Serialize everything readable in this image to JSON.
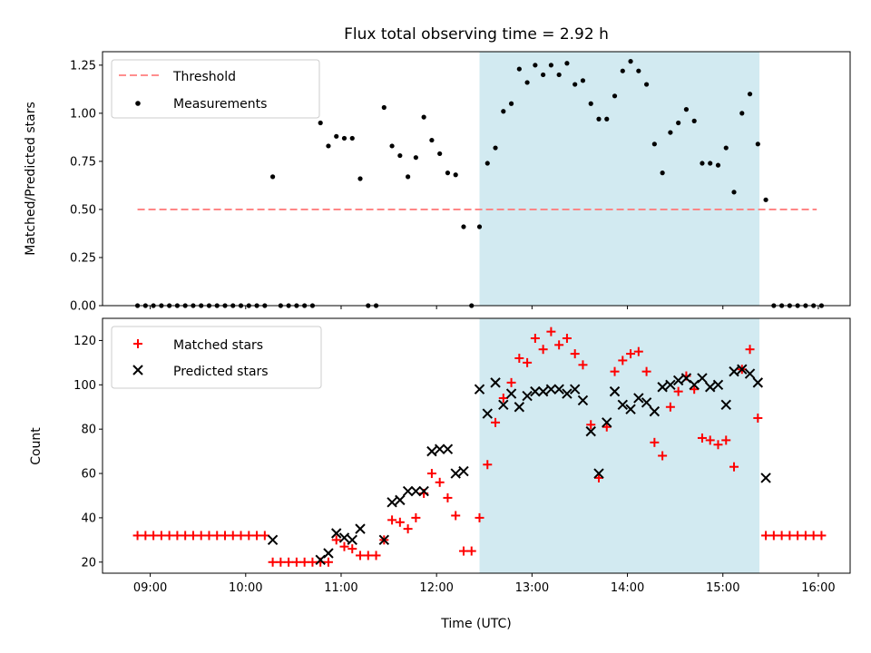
{
  "chart_data": [
    {
      "type": "scatter",
      "title": "Flux total observing time = 2.92 h",
      "xlabel": "",
      "ylabel": "Matched/Predicted stars",
      "ylim": [
        0,
        1.32
      ],
      "yticks": [
        "0.00",
        "0.25",
        "0.50",
        "0.75",
        "1.00",
        "1.25"
      ],
      "xlim": [
        "08:30",
        "16:20"
      ],
      "shaded_region": {
        "start": "12:27",
        "end": "15:23",
        "color": "#add8e6"
      },
      "legend_position": "upper left",
      "threshold": {
        "name": "Threshold",
        "value": 0.5,
        "start": "08:52",
        "end": "15:59",
        "color": "#ff7f7f"
      },
      "series": [
        {
          "name": "Measurements",
          "marker": "dot",
          "color": "#000000",
          "points": [
            [
              "08:52",
              0
            ],
            [
              "08:57",
              0
            ],
            [
              "09:02",
              0
            ],
            [
              "09:07",
              0
            ],
            [
              "09:12",
              0
            ],
            [
              "09:17",
              0
            ],
            [
              "09:22",
              0
            ],
            [
              "09:27",
              0
            ],
            [
              "09:32",
              0
            ],
            [
              "09:37",
              0
            ],
            [
              "09:42",
              0
            ],
            [
              "09:47",
              0
            ],
            [
              "09:52",
              0
            ],
            [
              "09:57",
              0
            ],
            [
              "10:02",
              0
            ],
            [
              "10:07",
              0
            ],
            [
              "10:12",
              0
            ],
            [
              "10:17",
              0.67
            ],
            [
              "10:22",
              0
            ],
            [
              "10:27",
              0
            ],
            [
              "10:32",
              0
            ],
            [
              "10:37",
              0
            ],
            [
              "10:42",
              0
            ],
            [
              "10:47",
              0.95
            ],
            [
              "10:52",
              0.83
            ],
            [
              "10:57",
              0.88
            ],
            [
              "11:02",
              0.87
            ],
            [
              "11:07",
              0.87
            ],
            [
              "11:12",
              0.66
            ],
            [
              "11:17",
              0
            ],
            [
              "11:22",
              0
            ],
            [
              "11:27",
              1.03
            ],
            [
              "11:32",
              0.83
            ],
            [
              "11:37",
              0.78
            ],
            [
              "11:42",
              0.67
            ],
            [
              "11:47",
              0.77
            ],
            [
              "11:52",
              0.98
            ],
            [
              "11:57",
              0.86
            ],
            [
              "12:02",
              0.79
            ],
            [
              "12:07",
              0.69
            ],
            [
              "12:12",
              0.68
            ],
            [
              "12:17",
              0.41
            ],
            [
              "12:22",
              0
            ],
            [
              "12:27",
              0.41
            ],
            [
              "12:32",
              0.74
            ],
            [
              "12:37",
              0.82
            ],
            [
              "12:42",
              1.01
            ],
            [
              "12:47",
              1.05
            ],
            [
              "12:52",
              1.23
            ],
            [
              "12:57",
              1.16
            ],
            [
              "13:02",
              1.25
            ],
            [
              "13:07",
              1.2
            ],
            [
              "13:12",
              1.25
            ],
            [
              "13:17",
              1.2
            ],
            [
              "13:22",
              1.26
            ],
            [
              "13:27",
              1.15
            ],
            [
              "13:32",
              1.17
            ],
            [
              "13:37",
              1.05
            ],
            [
              "13:42",
              0.97
            ],
            [
              "13:47",
              0.97
            ],
            [
              "13:52",
              1.09
            ],
            [
              "13:57",
              1.22
            ],
            [
              "14:02",
              1.27
            ],
            [
              "14:07",
              1.22
            ],
            [
              "14:12",
              1.15
            ],
            [
              "14:17",
              0.84
            ],
            [
              "14:22",
              0.69
            ],
            [
              "14:27",
              0.9
            ],
            [
              "14:32",
              0.95
            ],
            [
              "14:37",
              1.02
            ],
            [
              "14:42",
              0.96
            ],
            [
              "14:47",
              0.74
            ],
            [
              "14:52",
              0.74
            ],
            [
              "14:57",
              0.73
            ],
            [
              "15:02",
              0.82
            ],
            [
              "15:07",
              0.59
            ],
            [
              "15:12",
              1.0
            ],
            [
              "15:17",
              1.1
            ],
            [
              "15:22",
              0.84
            ],
            [
              "15:27",
              0.55
            ],
            [
              "15:32",
              0
            ],
            [
              "15:37",
              0
            ],
            [
              "15:42",
              0
            ],
            [
              "15:47",
              0
            ],
            [
              "15:52",
              0
            ],
            [
              "15:57",
              0
            ],
            [
              "16:02",
              0
            ]
          ]
        }
      ]
    },
    {
      "type": "scatter",
      "title": "",
      "xlabel": "Time (UTC)",
      "ylabel": "Count",
      "ylim": [
        15,
        130
      ],
      "yticks": [
        "20",
        "40",
        "60",
        "80",
        "100",
        "120"
      ],
      "xlim": [
        "08:30",
        "16:20"
      ],
      "xticks": [
        "09:00",
        "10:00",
        "11:00",
        "12:00",
        "13:00",
        "14:00",
        "15:00",
        "16:00"
      ],
      "shaded_region": {
        "start": "12:27",
        "end": "15:23",
        "color": "#add8e6"
      },
      "legend_position": "upper left",
      "series": [
        {
          "name": "Matched stars",
          "marker": "plus",
          "color": "#ff0000",
          "points": [
            [
              "08:52",
              32
            ],
            [
              "08:57",
              32
            ],
            [
              "09:02",
              32
            ],
            [
              "09:07",
              32
            ],
            [
              "09:12",
              32
            ],
            [
              "09:17",
              32
            ],
            [
              "09:22",
              32
            ],
            [
              "09:27",
              32
            ],
            [
              "09:32",
              32
            ],
            [
              "09:37",
              32
            ],
            [
              "09:42",
              32
            ],
            [
              "09:47",
              32
            ],
            [
              "09:52",
              32
            ],
            [
              "09:57",
              32
            ],
            [
              "10:02",
              32
            ],
            [
              "10:07",
              32
            ],
            [
              "10:12",
              32
            ],
            [
              "10:17",
              20
            ],
            [
              "10:22",
              20
            ],
            [
              "10:27",
              20
            ],
            [
              "10:32",
              20
            ],
            [
              "10:37",
              20
            ],
            [
              "10:42",
              20
            ],
            [
              "10:47",
              20
            ],
            [
              "10:52",
              20
            ],
            [
              "10:57",
              30
            ],
            [
              "11:02",
              27
            ],
            [
              "11:07",
              26
            ],
            [
              "11:12",
              23
            ],
            [
              "11:17",
              23
            ],
            [
              "11:22",
              23
            ],
            [
              "11:27",
              30
            ],
            [
              "11:32",
              39
            ],
            [
              "11:37",
              38
            ],
            [
              "11:42",
              35
            ],
            [
              "11:47",
              40
            ],
            [
              "11:52",
              51
            ],
            [
              "11:57",
              60
            ],
            [
              "12:02",
              56
            ],
            [
              "12:07",
              49
            ],
            [
              "12:12",
              41
            ],
            [
              "12:17",
              25
            ],
            [
              "12:22",
              25
            ],
            [
              "12:27",
              40
            ],
            [
              "12:32",
              64
            ],
            [
              "12:37",
              83
            ],
            [
              "12:42",
              94
            ],
            [
              "12:47",
              101
            ],
            [
              "12:52",
              112
            ],
            [
              "12:57",
              110
            ],
            [
              "13:02",
              121
            ],
            [
              "13:07",
              116
            ],
            [
              "13:12",
              124
            ],
            [
              "13:17",
              118
            ],
            [
              "13:22",
              121
            ],
            [
              "13:27",
              114
            ],
            [
              "13:32",
              109
            ],
            [
              "13:37",
              82
            ],
            [
              "13:42",
              58
            ],
            [
              "13:47",
              81
            ],
            [
              "13:52",
              106
            ],
            [
              "13:57",
              111
            ],
            [
              "14:02",
              114
            ],
            [
              "14:07",
              115
            ],
            [
              "14:12",
              106
            ],
            [
              "14:17",
              74
            ],
            [
              "14:22",
              68
            ],
            [
              "14:27",
              90
            ],
            [
              "14:32",
              97
            ],
            [
              "14:37",
              104
            ],
            [
              "14:42",
              98
            ],
            [
              "14:47",
              76
            ],
            [
              "14:52",
              75
            ],
            [
              "14:57",
              73
            ],
            [
              "15:02",
              75
            ],
            [
              "15:07",
              63
            ],
            [
              "15:12",
              107
            ],
            [
              "15:17",
              116
            ],
            [
              "15:22",
              85
            ],
            [
              "15:27",
              32
            ],
            [
              "15:32",
              32
            ],
            [
              "15:37",
              32
            ],
            [
              "15:42",
              32
            ],
            [
              "15:47",
              32
            ],
            [
              "15:52",
              32
            ],
            [
              "15:57",
              32
            ],
            [
              "16:02",
              32
            ]
          ]
        },
        {
          "name": "Predicted stars",
          "marker": "x",
          "color": "#000000",
          "points": [
            [
              "10:17",
              30
            ],
            [
              "10:47",
              21
            ],
            [
              "10:52",
              24
            ],
            [
              "10:57",
              33
            ],
            [
              "11:02",
              31
            ],
            [
              "11:07",
              30
            ],
            [
              "11:12",
              35
            ],
            [
              "11:27",
              30
            ],
            [
              "11:32",
              47
            ],
            [
              "11:37",
              48
            ],
            [
              "11:42",
              52
            ],
            [
              "11:47",
              52
            ],
            [
              "11:52",
              52
            ],
            [
              "11:57",
              70
            ],
            [
              "12:02",
              71
            ],
            [
              "12:07",
              71
            ],
            [
              "12:12",
              60
            ],
            [
              "12:17",
              61
            ],
            [
              "12:27",
              98
            ],
            [
              "12:32",
              87
            ],
            [
              "12:37",
              101
            ],
            [
              "12:42",
              91
            ],
            [
              "12:47",
              96
            ],
            [
              "12:52",
              90
            ],
            [
              "12:57",
              95
            ],
            [
              "13:02",
              97
            ],
            [
              "13:07",
              97
            ],
            [
              "13:12",
              98
            ],
            [
              "13:17",
              98
            ],
            [
              "13:22",
              96
            ],
            [
              "13:27",
              98
            ],
            [
              "13:32",
              93
            ],
            [
              "13:37",
              79
            ],
            [
              "13:42",
              60
            ],
            [
              "13:47",
              83
            ],
            [
              "13:52",
              97
            ],
            [
              "13:57",
              91
            ],
            [
              "14:02",
              89
            ],
            [
              "14:07",
              94
            ],
            [
              "14:12",
              92
            ],
            [
              "14:17",
              88
            ],
            [
              "14:22",
              99
            ],
            [
              "14:27",
              100
            ],
            [
              "14:32",
              102
            ],
            [
              "14:37",
              103
            ],
            [
              "14:42",
              100
            ],
            [
              "14:47",
              103
            ],
            [
              "14:52",
              99
            ],
            [
              "14:57",
              100
            ],
            [
              "15:02",
              91
            ],
            [
              "15:07",
              106
            ],
            [
              "15:12",
              107
            ],
            [
              "15:17",
              105
            ],
            [
              "15:22",
              101
            ],
            [
              "15:27",
              58
            ]
          ]
        }
      ]
    }
  ]
}
